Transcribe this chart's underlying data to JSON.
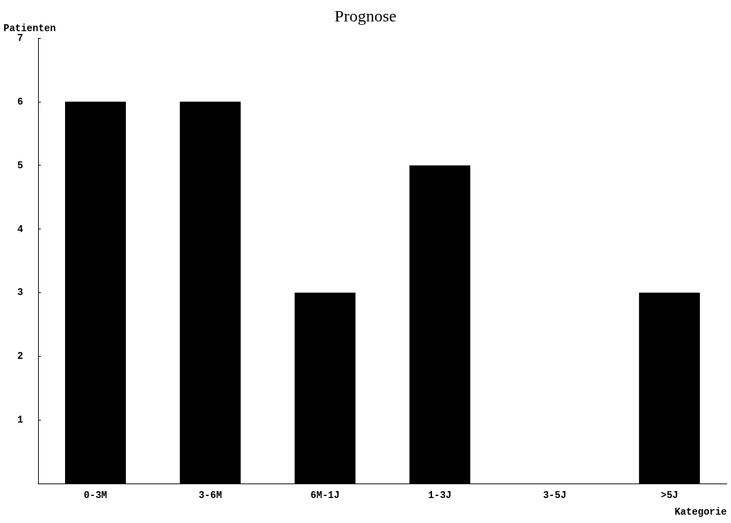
{
  "chart_data": {
    "type": "bar",
    "title": "Prognose",
    "xlabel": "Kategorie",
    "ylabel": "Patienten",
    "categories": [
      "0-3M",
      "3-6M",
      "6M-1J",
      "1-3J",
      "3-5J",
      ">5J"
    ],
    "values": [
      6,
      6,
      3,
      5,
      0,
      3
    ],
    "color": "#000000",
    "ylim": [
      0,
      7
    ],
    "yticks": [
      {
        "value": 0,
        "label": null
      },
      1,
      2,
      3,
      4,
      5,
      6,
      7
    ],
    "grid": false
  }
}
